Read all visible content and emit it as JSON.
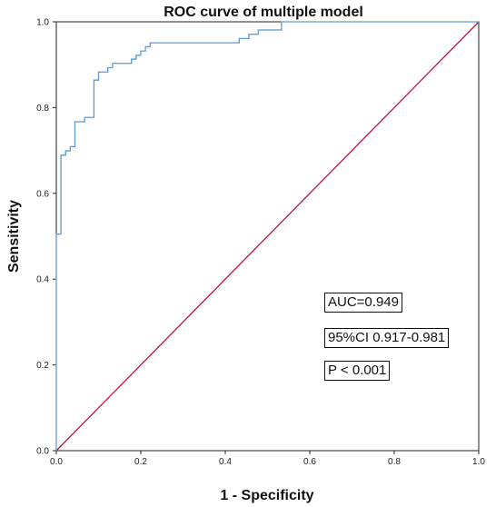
{
  "chart_data": {
    "type": "line",
    "title": "ROC curve of multiple model",
    "xlabel": "1 - Specificity",
    "ylabel": "Sensitivity",
    "xlim": [
      0.0,
      1.0
    ],
    "ylim": [
      0.0,
      1.0
    ],
    "x_ticks": [
      "0.0",
      "0.2",
      "0.4",
      "0.6",
      "0.8",
      "1.0"
    ],
    "y_ticks": [
      "0.0",
      "0.2",
      "0.4",
      "0.6",
      "0.8",
      "1.0"
    ],
    "grid": false,
    "legend": "none",
    "series": [
      {
        "color": "#5b9bd5",
        "x": [
          0.0,
          0.0,
          0.011,
          0.011,
          0.022,
          0.022,
          0.033,
          0.033,
          0.044,
          0.044,
          0.067,
          0.067,
          0.089,
          0.089,
          0.1,
          0.1,
          0.122,
          0.122,
          0.133,
          0.133,
          0.156,
          0.167,
          0.178,
          0.178,
          0.189,
          0.189,
          0.2,
          0.2,
          0.211,
          0.211,
          0.222,
          0.222,
          0.433,
          0.433,
          0.456,
          0.456,
          0.478,
          0.478,
          0.533,
          0.533,
          1.0
        ],
        "y": [
          0.0,
          0.505,
          0.505,
          0.689,
          0.689,
          0.699,
          0.699,
          0.709,
          0.709,
          0.767,
          0.767,
          0.777,
          0.777,
          0.864,
          0.864,
          0.883,
          0.883,
          0.893,
          0.893,
          0.903,
          0.903,
          0.903,
          0.903,
          0.913,
          0.913,
          0.922,
          0.922,
          0.932,
          0.932,
          0.942,
          0.942,
          0.951,
          0.951,
          0.961,
          0.961,
          0.971,
          0.971,
          0.981,
          0.981,
          1.0,
          1.0
        ]
      },
      {
        "color": "#c0143c",
        "x": [
          0.0,
          1.0
        ],
        "y": [
          0.0,
          1.0
        ]
      }
    ],
    "annotations": [
      "AUC=0.949",
      "95%CI 0.917-0.981",
      "P < 0.001"
    ]
  }
}
